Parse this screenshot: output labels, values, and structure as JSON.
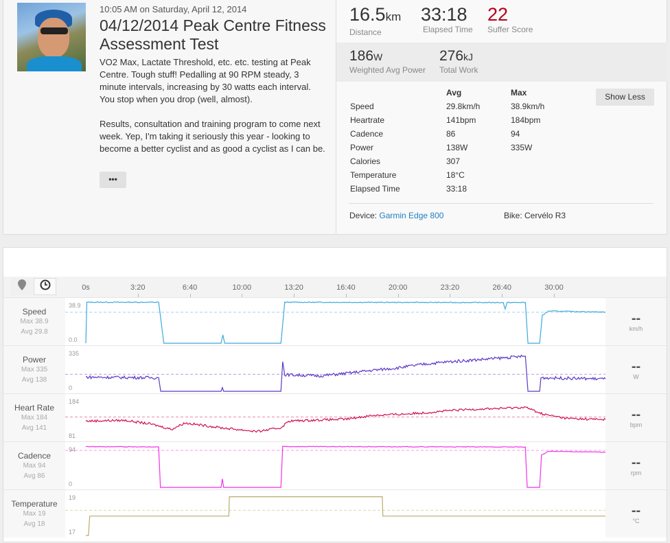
{
  "activity": {
    "datetime": "10:05 AM on Saturday, April 12, 2014",
    "title": "04/12/2014 Peak Centre Fitness Assessment Test",
    "description": [
      "VO2 Max, Lactate Threshold, etc. etc. testing at Peak Centre. Tough stuff! Pedalling at 90 RPM steady, 3 minute intervals, increasing by 30 watts each interval. You stop when you drop (well, almost).",
      "Results, consultation and training program to come next week. Yep, I'm taking it seriously this year - looking to become a better cyclist and as good a cyclist as I can be."
    ],
    "more_label": "•••"
  },
  "stats": {
    "distance": {
      "value": "16.5",
      "unit": "km",
      "label": "Distance"
    },
    "elapsed": {
      "value": "33:18",
      "label": "Elapsed Time"
    },
    "suffer": {
      "value": "22",
      "label": "Suffer Score",
      "color": "#b3001b"
    },
    "wap": {
      "value": "186",
      "unit": "W",
      "label": "Weighted Avg Power"
    },
    "work": {
      "value": "276",
      "unit": "kJ",
      "label": "Total Work"
    },
    "headers": [
      "Avg",
      "Max"
    ],
    "rows": [
      [
        "Speed",
        "29.8km/h",
        "38.9km/h"
      ],
      [
        "Heartrate",
        "141bpm",
        "184bpm"
      ],
      [
        "Cadence",
        "86",
        "94"
      ],
      [
        "Power",
        "138W",
        "335W"
      ],
      [
        "Calories",
        "307",
        ""
      ],
      [
        "Temperature",
        "18°C",
        ""
      ],
      [
        "Elapsed Time",
        "33:18",
        ""
      ]
    ],
    "show_less": "Show Less",
    "device_label": "Device:",
    "device": "Garmin Edge 800",
    "bike": "Bike: Cervélo R3"
  },
  "chart_data": {
    "type": "line",
    "x_ticks": [
      "0s",
      "3:20",
      "6:40",
      "10:00",
      "13:20",
      "16:40",
      "20:00",
      "23:20",
      "26:40",
      "30:00"
    ],
    "x_tick_seconds": [
      0,
      200,
      400,
      600,
      800,
      1000,
      1200,
      1400,
      1600,
      1800
    ],
    "x_max": 1998,
    "series": [
      {
        "name": "Speed",
        "max": "Max 38.9",
        "avg": "Avg 29.8",
        "top": "38.9",
        "bottom": "0.0",
        "unit": "km/h",
        "current": "--",
        "color": "#3aa9dd",
        "avg_value": 29.8,
        "ylim": [
          0,
          41
        ],
        "noise": 0.4,
        "points": [
          [
            0,
            0
          ],
          [
            4,
            39.5
          ],
          [
            280,
            39.5
          ],
          [
            300,
            0
          ],
          [
            520,
            0
          ],
          [
            527,
            8
          ],
          [
            534,
            0
          ],
          [
            750,
            0
          ],
          [
            765,
            39.5
          ],
          [
            1605,
            39.2
          ],
          [
            1612,
            33
          ],
          [
            1620,
            39.2
          ],
          [
            1690,
            39.3
          ],
          [
            1700,
            0
          ],
          [
            1745,
            0
          ],
          [
            1755,
            27
          ],
          [
            1780,
            31
          ],
          [
            1998,
            30
          ]
        ]
      },
      {
        "name": "Power",
        "max": "Max 335",
        "avg": "Avg 138",
        "top": "335",
        "bottom": "0",
        "unit": "W",
        "current": "--",
        "color": "#5b37c7",
        "avg_value": 138,
        "ylim": [
          0,
          345
        ],
        "noise": 12,
        "points": [
          [
            0,
            115
          ],
          [
            280,
            110
          ],
          [
            288,
            0
          ],
          [
            520,
            0
          ],
          [
            525,
            30
          ],
          [
            530,
            0
          ],
          [
            750,
            0
          ],
          [
            757,
            240
          ],
          [
            765,
            135
          ],
          [
            900,
            125
          ],
          [
            1000,
            145
          ],
          [
            1100,
            170
          ],
          [
            1200,
            190
          ],
          [
            1300,
            220
          ],
          [
            1400,
            240
          ],
          [
            1500,
            255
          ],
          [
            1600,
            270
          ],
          [
            1690,
            285
          ],
          [
            1700,
            0
          ],
          [
            1745,
            0
          ],
          [
            1750,
            110
          ],
          [
            1998,
            100
          ]
        ]
      },
      {
        "name": "Heart Rate",
        "max": "Max 184",
        "avg": "Avg 141",
        "top": "184",
        "bottom": "81",
        "unit": "bpm",
        "current": "--",
        "color": "#d0104f",
        "avg_value": 141,
        "ylim": [
          81,
          195
        ],
        "noise": 3,
        "points": [
          [
            0,
            130
          ],
          [
            150,
            132
          ],
          [
            250,
            122
          ],
          [
            330,
            108
          ],
          [
            380,
            125
          ],
          [
            520,
            112
          ],
          [
            660,
            102
          ],
          [
            750,
            112
          ],
          [
            780,
            130
          ],
          [
            900,
            133
          ],
          [
            1000,
            135
          ],
          [
            1100,
            145
          ],
          [
            1200,
            148
          ],
          [
            1300,
            152
          ],
          [
            1400,
            158
          ],
          [
            1500,
            162
          ],
          [
            1600,
            164
          ],
          [
            1690,
            167
          ],
          [
            1760,
            148
          ],
          [
            1850,
            137
          ],
          [
            1998,
            134
          ]
        ]
      },
      {
        "name": "Cadence",
        "max": "Max 94",
        "avg": "Avg 86",
        "top": "94",
        "bottom": "0",
        "unit": "rpm",
        "current": "--",
        "color": "#f032e6",
        "avg_value": 86,
        "ylim": [
          0,
          99
        ],
        "noise": 0.7,
        "points": [
          [
            0,
            95
          ],
          [
            280,
            94
          ],
          [
            287,
            0
          ],
          [
            520,
            0
          ],
          [
            525,
            20
          ],
          [
            530,
            0
          ],
          [
            750,
            0
          ],
          [
            757,
            95
          ],
          [
            1690,
            94
          ],
          [
            1697,
            0
          ],
          [
            1745,
            0
          ],
          [
            1752,
            75
          ],
          [
            1780,
            84
          ],
          [
            1998,
            82
          ]
        ]
      },
      {
        "name": "Temperature",
        "max": "Max 19",
        "avg": "Avg 18",
        "top": "19",
        "bottom": "17",
        "unit": "°C",
        "current": "--",
        "color": "#b8ac6a",
        "avg_value": 18.3,
        "ylim": [
          17,
          19.2
        ],
        "noise": 0,
        "points": [
          [
            0,
            17
          ],
          [
            10,
            17
          ],
          [
            15,
            18
          ],
          [
            550,
            18
          ],
          [
            552,
            19
          ],
          [
            1140,
            19
          ],
          [
            1142,
            18
          ],
          [
            1998,
            18
          ]
        ]
      }
    ]
  }
}
